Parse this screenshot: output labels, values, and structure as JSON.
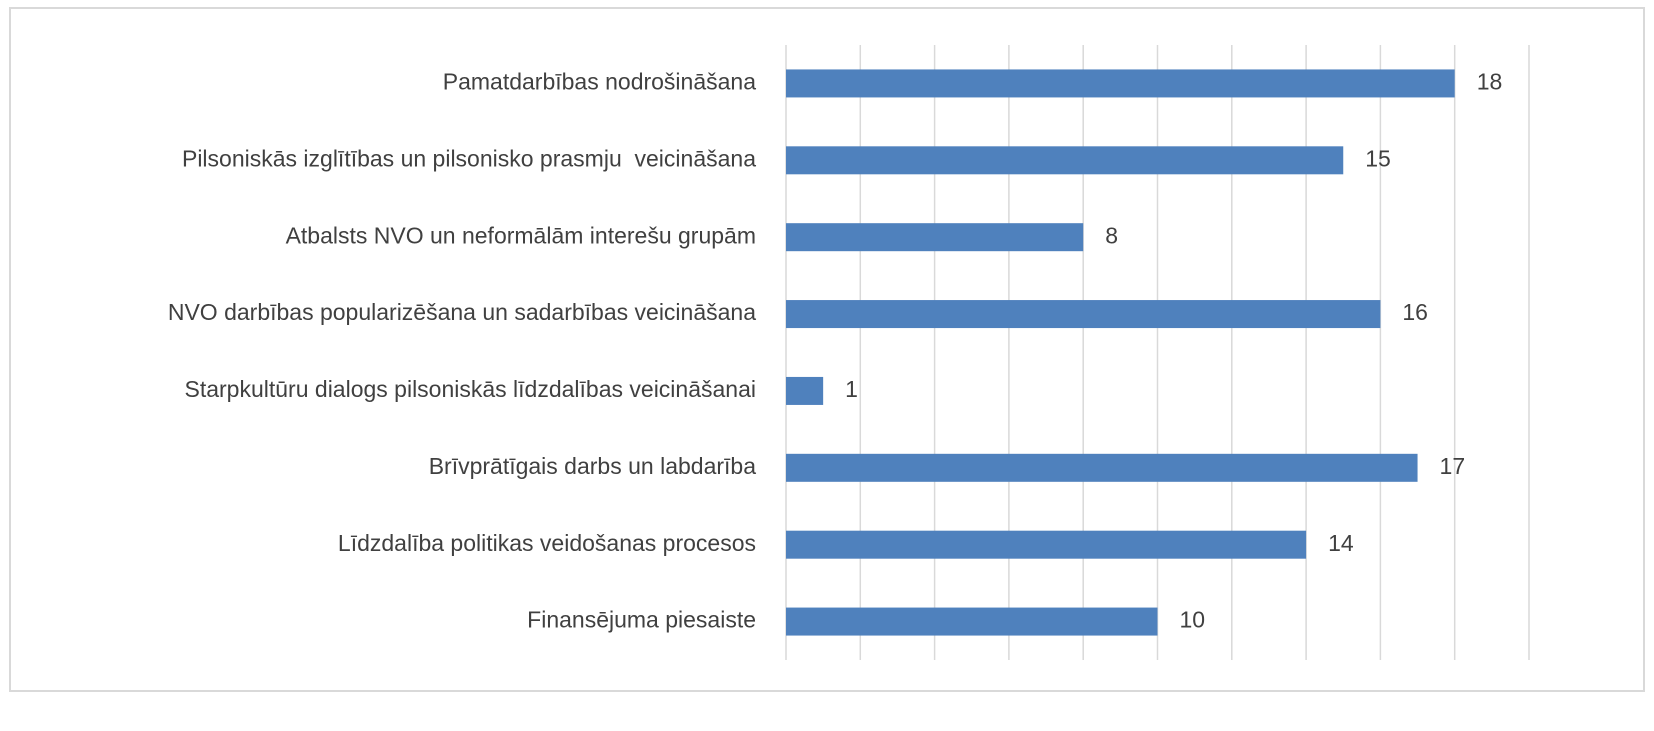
{
  "chart_data": {
    "type": "barh",
    "categories": [
      "Pamatdarbības nodrošināšana",
      "Pilsoniskās izglītības un pilsonisko prasmju  veicināšana",
      "Atbalsts NVO un neformālām interešu grupām",
      "NVO darbības popularizēšana un sadarbības veicināšana",
      "Starpkultūru dialogs pilsoniskās līdzdalības veicināšanai",
      "Brīvprātīgais darbs un labdarība",
      "Līdzdalība politikas veidošanas procesos",
      "Finansējuma piesaiste"
    ],
    "values": [
      18,
      15,
      8,
      16,
      1,
      17,
      14,
      10
    ],
    "color": "#4f81bd",
    "xlim": [
      0,
      20
    ],
    "xticks": [
      0,
      2,
      4,
      6,
      8,
      10,
      12,
      14,
      16,
      18,
      20
    ],
    "grid": true
  }
}
